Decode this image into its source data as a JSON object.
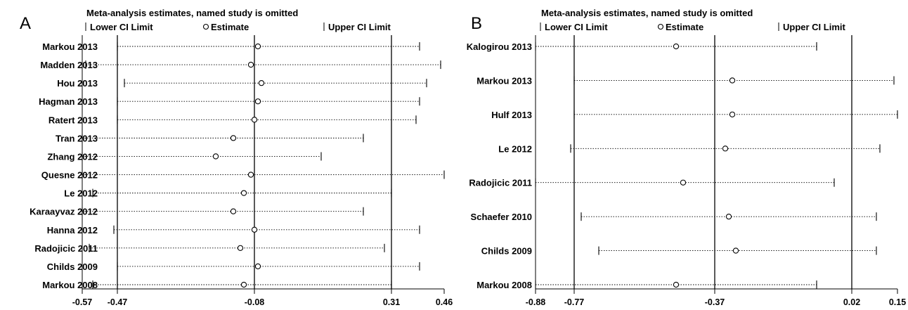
{
  "chart_data": [
    {
      "type": "forest",
      "panel_label": "A",
      "title": "Meta-analysis estimates, named study is omitted",
      "legend": {
        "lower": "Lower CI Limit",
        "estimate": "Estimate",
        "upper": "Upper CI Limit"
      },
      "xlim": [
        -0.57,
        0.46
      ],
      "xticks": [
        "-0.57",
        "-0.47",
        "-0.08",
        "0.31",
        "0.46"
      ],
      "reference_lines": [
        -0.47,
        -0.08,
        0.31
      ],
      "studies": [
        {
          "name": "Markou 2013",
          "lower": -0.47,
          "estimate": -0.07,
          "upper": 0.39
        },
        {
          "name": "Madden 2013",
          "lower": -0.56,
          "estimate": -0.09,
          "upper": 0.45
        },
        {
          "name": "Hou 2013",
          "lower": -0.45,
          "estimate": -0.06,
          "upper": 0.41
        },
        {
          "name": "Hagman 2013",
          "lower": -0.47,
          "estimate": -0.07,
          "upper": 0.39
        },
        {
          "name": "Ratert 2013",
          "lower": -0.47,
          "estimate": -0.08,
          "upper": 0.38
        },
        {
          "name": "Tran 2013",
          "lower": -0.57,
          "estimate": -0.14,
          "upper": 0.23
        },
        {
          "name": "Zhang 2012",
          "lower": -0.57,
          "estimate": -0.19,
          "upper": 0.11
        },
        {
          "name": "Quesne 2012",
          "lower": -0.57,
          "estimate": -0.09,
          "upper": 0.46
        },
        {
          "name": "Le 2012",
          "lower": -0.54,
          "estimate": -0.11,
          "upper": 0.31
        },
        {
          "name": "Karaayvaz 2012",
          "lower": -0.57,
          "estimate": -0.14,
          "upper": 0.23
        },
        {
          "name": "Hanna 2012",
          "lower": -0.48,
          "estimate": -0.08,
          "upper": 0.39
        },
        {
          "name": "Radojicic 2011",
          "lower": -0.55,
          "estimate": -0.12,
          "upper": 0.29
        },
        {
          "name": "Childs 2009",
          "lower": -0.47,
          "estimate": -0.07,
          "upper": 0.39
        },
        {
          "name": "Markou 2008",
          "lower": -0.54,
          "estimate": -0.11,
          "upper": 0.31
        }
      ]
    },
    {
      "type": "forest",
      "panel_label": "B",
      "title": "Meta-analysis estimates, named study is omitted",
      "legend": {
        "lower": "Lower CI Limit",
        "estimate": "Estimate",
        "upper": "Upper CI Limit"
      },
      "xlim": [
        -0.88,
        0.15
      ],
      "xticks": [
        "-0.88",
        "-0.77",
        "-0.37",
        "0.02",
        "0.15"
      ],
      "reference_lines": [
        -0.77,
        -0.37,
        0.02
      ],
      "studies": [
        {
          "name": "Kalogirou 2013",
          "lower": -0.88,
          "estimate": -0.48,
          "upper": -0.08
        },
        {
          "name": "Markou 2013",
          "lower": -0.77,
          "estimate": -0.32,
          "upper": 0.14
        },
        {
          "name": "Hulf 2013",
          "lower": -0.77,
          "estimate": -0.32,
          "upper": 0.15
        },
        {
          "name": "Le 2012",
          "lower": -0.78,
          "estimate": -0.34,
          "upper": 0.1
        },
        {
          "name": "Radojicic 2011",
          "lower": -0.88,
          "estimate": -0.46,
          "upper": -0.03
        },
        {
          "name": "Schaefer 2010",
          "lower": -0.75,
          "estimate": -0.33,
          "upper": 0.09
        },
        {
          "name": "Childs 2009",
          "lower": -0.7,
          "estimate": -0.31,
          "upper": 0.09
        },
        {
          "name": "Markou 2008",
          "lower": -0.88,
          "estimate": -0.48,
          "upper": -0.08
        }
      ]
    }
  ]
}
